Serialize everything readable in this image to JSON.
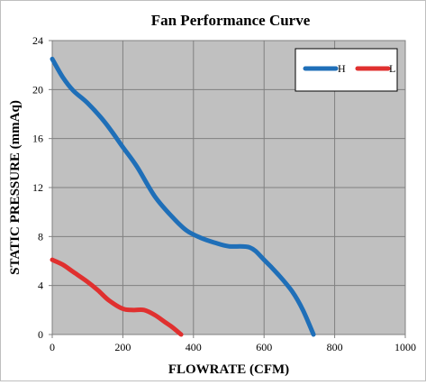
{
  "chart_data": {
    "type": "line",
    "title": "Fan Performance Curve",
    "xlabel": "FLOWRATE (CFM)",
    "ylabel": "STATIC PRESSURE (mmAq)",
    "xlim": [
      0,
      1000
    ],
    "ylim": [
      0,
      24
    ],
    "x_ticks": [
      0,
      200,
      400,
      600,
      800,
      1000
    ],
    "y_ticks": [
      0,
      4,
      8,
      12,
      16,
      20,
      24
    ],
    "grid": true,
    "legend_position": "top-right",
    "plot_background": "#c0c0c0",
    "series": [
      {
        "name": "H",
        "color": "#1f6fb8",
        "points": [
          [
            0,
            22.5
          ],
          [
            30,
            21.0
          ],
          [
            60,
            19.9
          ],
          [
            100,
            18.9
          ],
          [
            150,
            17.3
          ],
          [
            200,
            15.3
          ],
          [
            240,
            13.7
          ],
          [
            290,
            11.3
          ],
          [
            340,
            9.6
          ],
          [
            380,
            8.5
          ],
          [
            420,
            7.9
          ],
          [
            460,
            7.5
          ],
          [
            500,
            7.2
          ],
          [
            560,
            7.1
          ],
          [
            600,
            6.1
          ],
          [
            640,
            4.9
          ],
          [
            680,
            3.5
          ],
          [
            710,
            2.0
          ],
          [
            740,
            0.0
          ]
        ]
      },
      {
        "name": "L",
        "color": "#e0302f",
        "points": [
          [
            0,
            6.1
          ],
          [
            30,
            5.7
          ],
          [
            60,
            5.1
          ],
          [
            100,
            4.3
          ],
          [
            130,
            3.6
          ],
          [
            160,
            2.8
          ],
          [
            200,
            2.1
          ],
          [
            230,
            2.0
          ],
          [
            260,
            2.0
          ],
          [
            290,
            1.6
          ],
          [
            320,
            1.0
          ],
          [
            340,
            0.6
          ],
          [
            365,
            0.0
          ]
        ]
      }
    ]
  }
}
